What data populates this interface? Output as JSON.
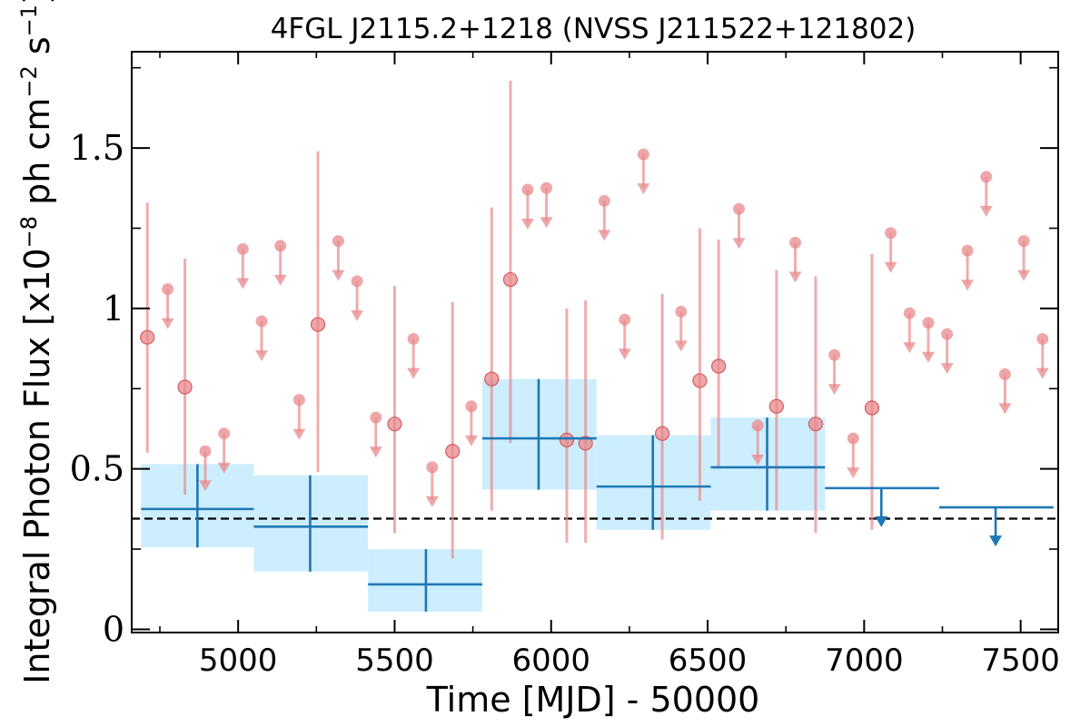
{
  "chart_data": {
    "type": "scatter",
    "title": "4FGL J2115.2+1218 (NVSS J211522+121802)",
    "xlabel": "Time [MJD] - 50000",
    "ylabel": {
      "prefix": "Integral Photon Flux [x10",
      "exp1": "−8",
      "mid": " ph cm",
      "exp2": "−2",
      "mid2": " s",
      "exp3": "−1",
      "suffix": "]"
    },
    "xlim": [
      4660,
      7620
    ],
    "ylim": [
      -0.01,
      1.8
    ],
    "x_ticks": [
      5000,
      5500,
      6000,
      6500,
      7000,
      7500
    ],
    "x_tick_labels": [
      "5000",
      "5500",
      "6000",
      "6500",
      "7000",
      "7500"
    ],
    "y_ticks": [
      0,
      0.5,
      1,
      1.5
    ],
    "y_tick_labels": [
      "0",
      "0.5",
      "1",
      "1.5"
    ],
    "grid": false,
    "reference_line": {
      "y": 0.345,
      "style": "dashed",
      "color": "#000000"
    },
    "colors": {
      "short_bins": "#e88a8c",
      "long_bins": "#1f77b4",
      "long_band": "#cdeefe"
    },
    "series": [
      {
        "role": "short_bins_detections",
        "points": [
          {
            "x": 4710,
            "y": 0.91,
            "ylo": 0.55,
            "yhi": 1.33
          },
          {
            "x": 4830,
            "y": 0.755,
            "ylo": 0.42,
            "yhi": 1.155
          },
          {
            "x": 5255,
            "y": 0.95,
            "ylo": 0.49,
            "yhi": 1.49
          },
          {
            "x": 5500,
            "y": 0.64,
            "ylo": 0.3,
            "yhi": 1.07
          },
          {
            "x": 5685,
            "y": 0.555,
            "ylo": 0.22,
            "yhi": 1.02
          },
          {
            "x": 5810,
            "y": 0.78,
            "ylo": 0.37,
            "yhi": 1.315
          },
          {
            "x": 5870,
            "y": 1.09,
            "ylo": 0.58,
            "yhi": 1.71
          },
          {
            "x": 6050,
            "y": 0.59,
            "ylo": 0.27,
            "yhi": 1.0
          },
          {
            "x": 6110,
            "y": 0.58,
            "ylo": 0.27,
            "yhi": 1.025
          },
          {
            "x": 6355,
            "y": 0.61,
            "ylo": 0.28,
            "yhi": 1.045
          },
          {
            "x": 6475,
            "y": 0.775,
            "ylo": 0.4,
            "yhi": 1.25
          },
          {
            "x": 6535,
            "y": 0.82,
            "ylo": 0.5,
            "yhi": 1.215
          },
          {
            "x": 6720,
            "y": 0.695,
            "ylo": 0.37,
            "yhi": 1.12
          },
          {
            "x": 6845,
            "y": 0.64,
            "ylo": 0.3,
            "yhi": 1.1
          },
          {
            "x": 7025,
            "y": 0.69,
            "ylo": 0.31,
            "yhi": 1.17
          }
        ]
      },
      {
        "role": "short_bins_upper_limits",
        "points": [
          {
            "x": 4775,
            "y": 1.06
          },
          {
            "x": 4895,
            "y": 0.555
          },
          {
            "x": 4955,
            "y": 0.61
          },
          {
            "x": 5015,
            "y": 1.185
          },
          {
            "x": 5075,
            "y": 0.96
          },
          {
            "x": 5135,
            "y": 1.195
          },
          {
            "x": 5195,
            "y": 0.715
          },
          {
            "x": 5320,
            "y": 1.21
          },
          {
            "x": 5380,
            "y": 1.085
          },
          {
            "x": 5440,
            "y": 0.66
          },
          {
            "x": 5560,
            "y": 0.905
          },
          {
            "x": 5620,
            "y": 0.505
          },
          {
            "x": 5745,
            "y": 0.695
          },
          {
            "x": 5925,
            "y": 1.37
          },
          {
            "x": 5985,
            "y": 1.375
          },
          {
            "x": 6170,
            "y": 1.335
          },
          {
            "x": 6235,
            "y": 0.965
          },
          {
            "x": 6295,
            "y": 1.48
          },
          {
            "x": 6415,
            "y": 0.99
          },
          {
            "x": 6600,
            "y": 1.31
          },
          {
            "x": 6660,
            "y": 0.635
          },
          {
            "x": 6780,
            "y": 1.205
          },
          {
            "x": 6905,
            "y": 0.855
          },
          {
            "x": 6965,
            "y": 0.595
          },
          {
            "x": 7085,
            "y": 1.235
          },
          {
            "x": 7145,
            "y": 0.985
          },
          {
            "x": 7205,
            "y": 0.955
          },
          {
            "x": 7265,
            "y": 0.92
          },
          {
            "x": 7330,
            "y": 1.18
          },
          {
            "x": 7390,
            "y": 1.41
          },
          {
            "x": 7450,
            "y": 0.795
          },
          {
            "x": 7510,
            "y": 1.21
          },
          {
            "x": 7570,
            "y": 0.905
          }
        ]
      },
      {
        "role": "long_bins_detections",
        "bins": [
          {
            "x0": 4690,
            "x1": 5050,
            "x": 4870,
            "y": 0.375,
            "ylo": 0.255,
            "yhi": 0.515
          },
          {
            "x0": 5050,
            "x1": 5415,
            "x": 5230,
            "y": 0.32,
            "ylo": 0.18,
            "yhi": 0.48
          },
          {
            "x0": 5415,
            "x1": 5780,
            "x": 5600,
            "y": 0.14,
            "ylo": 0.055,
            "yhi": 0.25
          },
          {
            "x0": 5780,
            "x1": 6145,
            "x": 5960,
            "y": 0.595,
            "ylo": 0.435,
            "yhi": 0.78
          },
          {
            "x0": 6145,
            "x1": 6510,
            "x": 6325,
            "y": 0.445,
            "ylo": 0.31,
            "yhi": 0.605
          },
          {
            "x0": 6510,
            "x1": 6875,
            "x": 6690,
            "y": 0.505,
            "ylo": 0.37,
            "yhi": 0.66
          }
        ]
      },
      {
        "role": "long_bins_upper_limits",
        "bins": [
          {
            "x0": 6875,
            "x1": 7240,
            "x": 7055,
            "y": 0.44
          },
          {
            "x0": 7240,
            "x1": 7605,
            "x": 7420,
            "y": 0.38
          }
        ]
      }
    ]
  }
}
